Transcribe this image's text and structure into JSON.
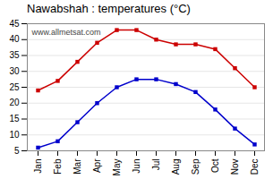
{
  "chart_data": {
    "type": "line",
    "title": "Nawabshah : temperatures (°C)",
    "categories": [
      "Jan",
      "Feb",
      "Mar",
      "Apr",
      "May",
      "Jun",
      "Jul",
      "Aug",
      "Sep",
      "Oct",
      "Nov",
      "Dec"
    ],
    "series": [
      {
        "color": "#cc0000",
        "marker": "square",
        "values": [
          24,
          27,
          33,
          39,
          43,
          43,
          40,
          38.5,
          38.5,
          37,
          31,
          25
        ]
      },
      {
        "color": "#0000cc",
        "marker": "square",
        "values": [
          6,
          8,
          14,
          20,
          25,
          27.5,
          27.5,
          26,
          23.5,
          18,
          12,
          7
        ]
      }
    ],
    "ylim": [
      5,
      45
    ],
    "yticks": [
      5,
      10,
      15,
      20,
      25,
      30,
      35,
      40,
      45
    ],
    "grid": true,
    "annotation": "www.allmetsat.com"
  }
}
